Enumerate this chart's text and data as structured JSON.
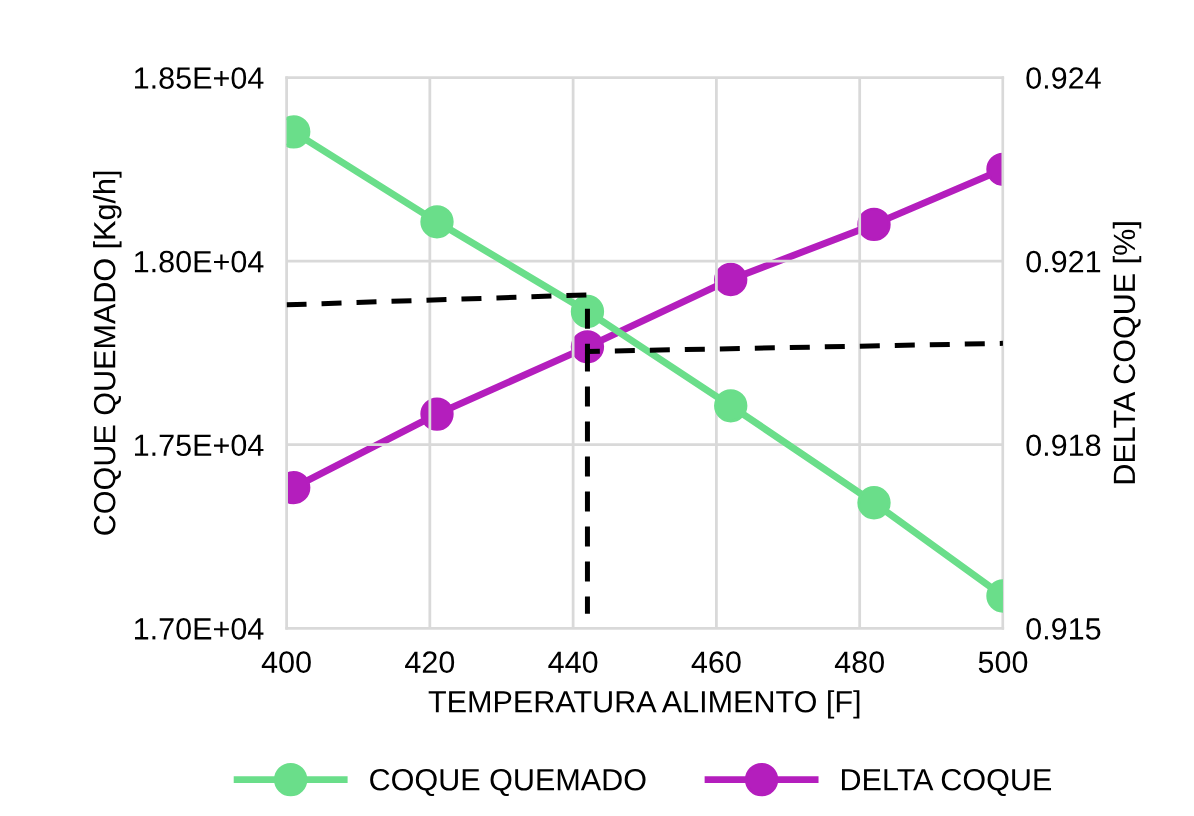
{
  "chart_data": {
    "type": "line",
    "xlabel": "TEMPERATURA ALIMENTO [F]",
    "ylabel": "COQUE QUEMADO [Kg/h]",
    "y2label": "DELTA COQUE [%]",
    "xlim": [
      400,
      500
    ],
    "xticks": [
      400,
      420,
      440,
      460,
      480,
      500
    ],
    "ylim": [
      17000,
      18500
    ],
    "yticks": [
      {
        "value": 17000,
        "label": "1.70E+04"
      },
      {
        "value": 17500,
        "label": "1.75E+04"
      },
      {
        "value": 18000,
        "label": "1.80E+04"
      },
      {
        "value": 18500,
        "label": "1.85E+04"
      }
    ],
    "y2lim": [
      0.915,
      0.924
    ],
    "y2ticks": [
      0.915,
      0.918,
      0.921,
      0.924
    ],
    "grid": true,
    "legend": "bottom",
    "marker": "circle",
    "line_style": "solid",
    "series": [
      {
        "name": "COQUE QUEMADO",
        "color": "#6ade8a",
        "x": [
          401,
          421,
          442,
          462,
          482,
          500
        ],
        "values": [
          18352,
          18107,
          17863,
          17606,
          17342,
          17088
        ]
      },
      {
        "name": "DELTA COQUE",
        "color": "#b41ebd",
        "axis": "y2",
        "x": [
          401,
          421,
          442,
          462,
          482,
          500
        ],
        "values": [
          0.9173,
          0.9185,
          0.9196,
          0.9207,
          0.9216,
          0.9225
        ]
      },
      {
        "color": "#000000",
        "marker": "none",
        "line_style": "dashed",
        "x": [
          400,
          442,
          442,
          500
        ],
        "values": [
          17881,
          17908,
          17754,
          17776
        ]
      },
      {
        "color": "#000000",
        "marker": "none",
        "line_style": "dashed",
        "x": [
          442,
          442
        ],
        "values": [
          17754,
          17040
        ]
      }
    ]
  }
}
